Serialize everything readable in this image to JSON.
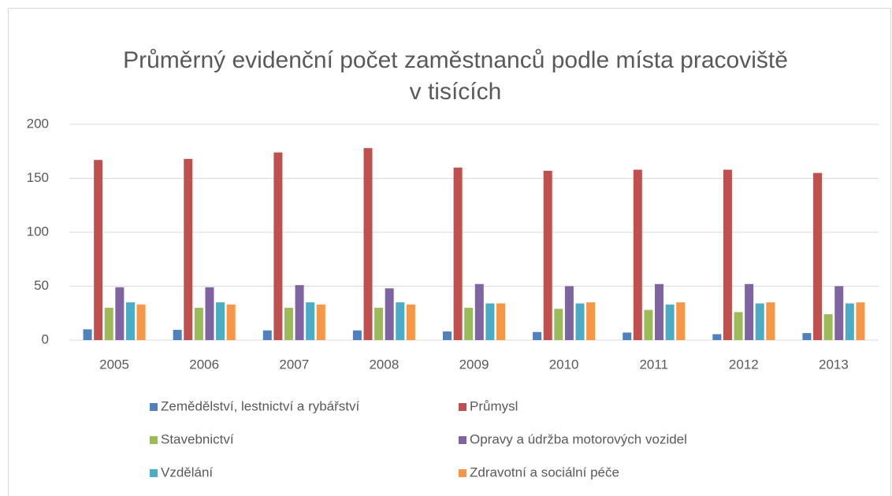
{
  "chart_data": {
    "type": "bar",
    "title": "Průměrný evidenční počet zaměstnanců podle místa pracoviště v tisících",
    "categories": [
      "2005",
      "2006",
      "2007",
      "2008",
      "2009",
      "2010",
      "2011",
      "2012",
      "2013"
    ],
    "series": [
      {
        "name": "Zemědělství, lestnictví a rybářství",
        "color": "#4f81bd",
        "values": [
          10,
          9.5,
          9,
          9,
          8,
          7.5,
          7,
          5.5,
          6.5
        ]
      },
      {
        "name": "Průmysl",
        "color": "#c0504d",
        "values": [
          167,
          168,
          174,
          178,
          160,
          157,
          158,
          158,
          155
        ]
      },
      {
        "name": "Stavebnictví",
        "color": "#9bbb59",
        "values": [
          30,
          30,
          30,
          30,
          30,
          29,
          28,
          26,
          24
        ]
      },
      {
        "name": "Opravy a údržba motorových vozidel",
        "color": "#8064a2",
        "values": [
          49,
          49,
          51,
          48,
          52,
          50,
          52,
          52,
          50
        ]
      },
      {
        "name": "Vzdělání",
        "color": "#4bacc6",
        "values": [
          35,
          35,
          35,
          35,
          34,
          34,
          33,
          34,
          34
        ]
      },
      {
        "name": "Zdravotní a sociální péče",
        "color": "#f79646",
        "values": [
          33,
          33,
          33,
          33,
          34,
          35,
          35,
          35,
          35
        ]
      }
    ],
    "ylim": [
      0,
      200
    ],
    "yticks": [
      0,
      50,
      100,
      150,
      200
    ],
    "grid": true
  }
}
